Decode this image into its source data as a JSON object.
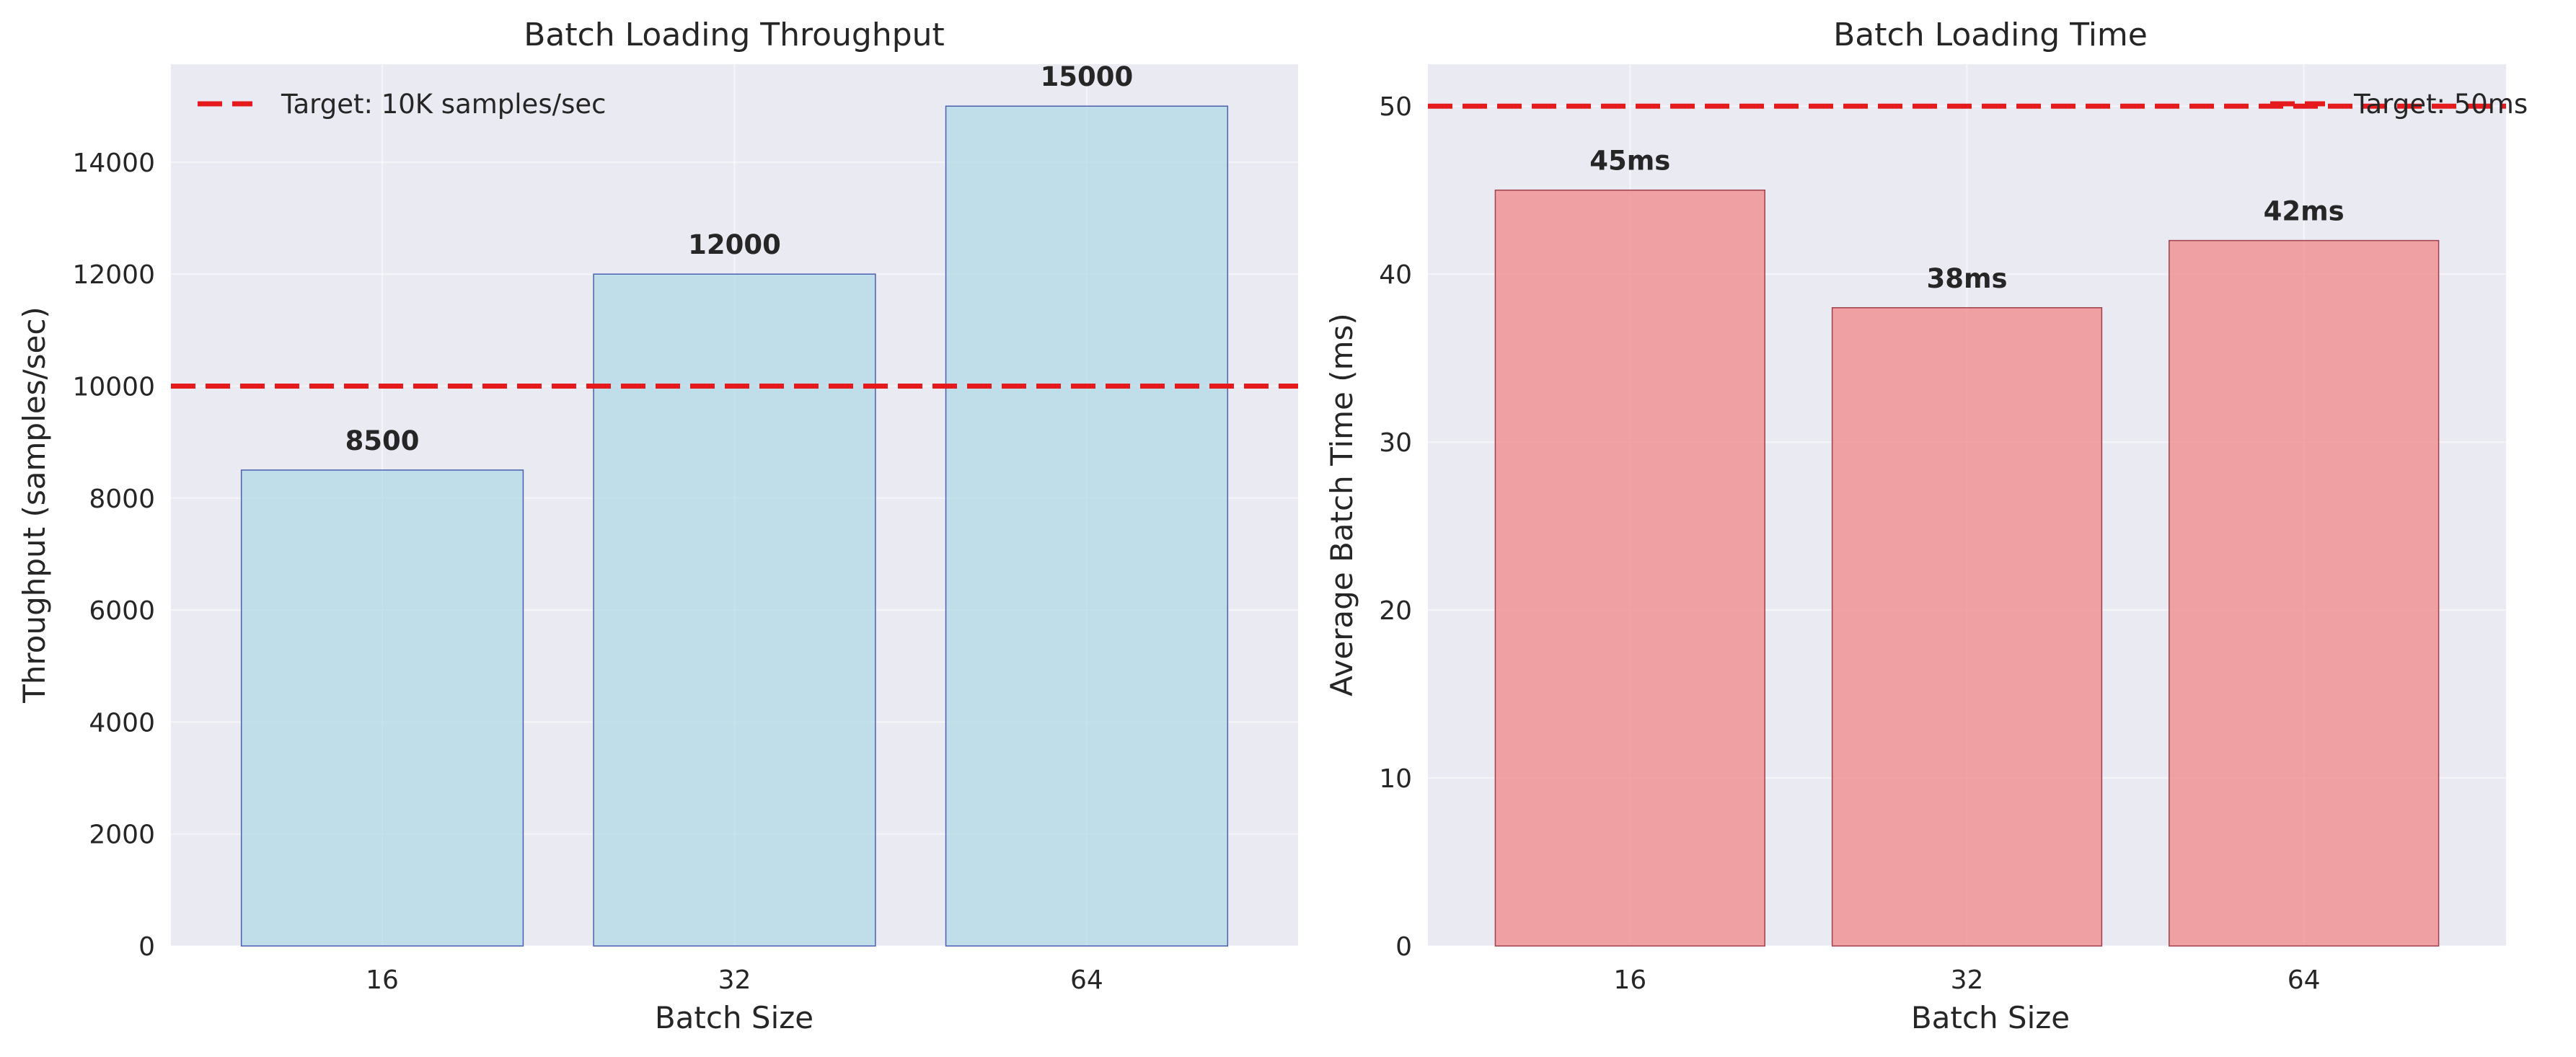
{
  "chart_data": [
    {
      "type": "bar",
      "title": "Batch Loading Throughput",
      "xlabel": "Batch Size",
      "ylabel": "Throughput (samples/sec)",
      "categories": [
        "16",
        "32",
        "64"
      ],
      "values": [
        8500,
        12000,
        15000
      ],
      "value_labels": [
        "8500",
        "12000",
        "15000"
      ],
      "ylim": [
        0,
        15750
      ],
      "yticks": [
        0,
        2000,
        4000,
        6000,
        8000,
        10000,
        12000,
        14000
      ],
      "ytick_labels": [
        "0",
        "2000",
        "4000",
        "6000",
        "8000",
        "10000",
        "12000",
        "14000"
      ],
      "reference_line": {
        "value": 10000,
        "label": "Target: 10K samples/sec",
        "color": "#e41a1c"
      },
      "legend_position": "top-left",
      "grid": true,
      "bar_color": "#add8e6",
      "bar_edge_color": "#4a5fb0"
    },
    {
      "type": "bar",
      "title": "Batch Loading Time",
      "xlabel": "Batch Size",
      "ylabel": "Average Batch Time (ms)",
      "categories": [
        "16",
        "32",
        "64"
      ],
      "values": [
        45,
        38,
        42
      ],
      "value_labels": [
        "45ms",
        "38ms",
        "42ms"
      ],
      "ylim": [
        0,
        52.5
      ],
      "yticks": [
        0,
        10,
        20,
        30,
        40,
        50
      ],
      "ytick_labels": [
        "0",
        "10",
        "20",
        "30",
        "40",
        "50"
      ],
      "reference_line": {
        "value": 50,
        "label": "Target: 50ms",
        "color": "#e41a1c"
      },
      "legend_position": "top-right",
      "grid": true,
      "bar_color": "#f08080",
      "bar_edge_color": "#a0404a"
    }
  ]
}
